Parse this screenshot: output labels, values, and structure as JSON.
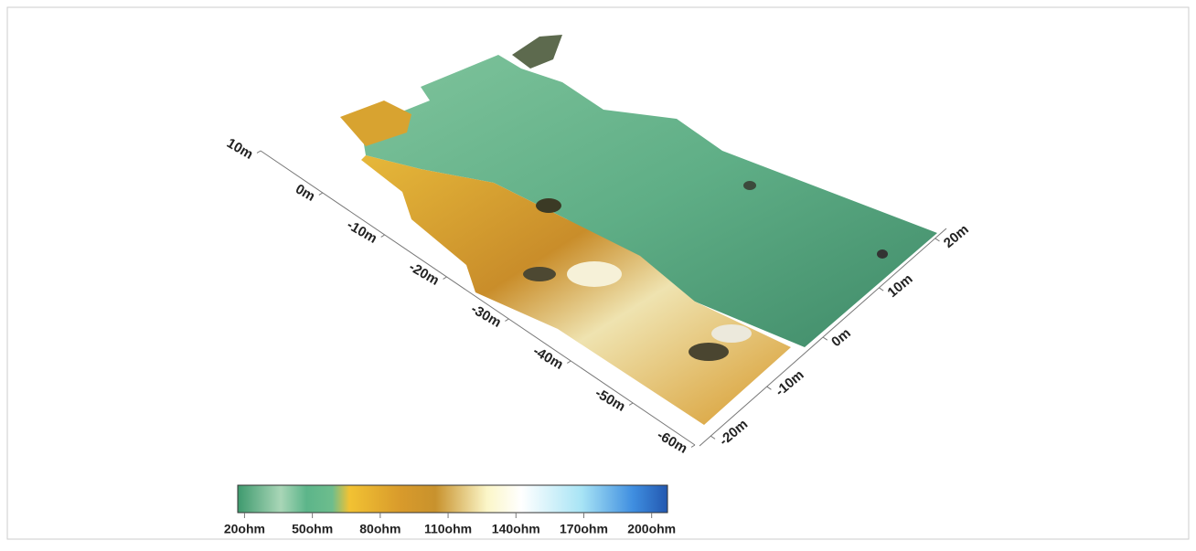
{
  "chart_data": {
    "type": "surface",
    "y_axis": {
      "lim": [
        10,
        -60
      ],
      "ticks": [
        {
          "value": 10,
          "label": "10m"
        },
        {
          "value": 0,
          "label": "0m"
        },
        {
          "value": -10,
          "label": "-10m"
        },
        {
          "value": -20,
          "label": "-20m"
        },
        {
          "value": -30,
          "label": "-30m"
        },
        {
          "value": -40,
          "label": "-40m"
        },
        {
          "value": -50,
          "label": "-50m"
        },
        {
          "value": -60,
          "label": "-60m"
        }
      ]
    },
    "x_axis": {
      "lim": [
        -22,
        22
      ],
      "ticks": [
        {
          "value": -20,
          "label": "-20m"
        },
        {
          "value": -10,
          "label": "-10m"
        },
        {
          "value": 0,
          "label": "0m"
        },
        {
          "value": 10,
          "label": "10m"
        },
        {
          "value": 20,
          "label": "20m"
        }
      ]
    },
    "colorbar": {
      "lim": [
        17,
        207
      ],
      "ticks": [
        {
          "value": 20,
          "label": "20ohm"
        },
        {
          "value": 50,
          "label": "50ohm"
        },
        {
          "value": 80,
          "label": "80ohm"
        },
        {
          "value": 110,
          "label": "110ohm"
        },
        {
          "value": 140,
          "label": "140ohm"
        },
        {
          "value": 170,
          "label": "170ohm"
        },
        {
          "value": 200,
          "label": "200ohm"
        }
      ]
    }
  }
}
